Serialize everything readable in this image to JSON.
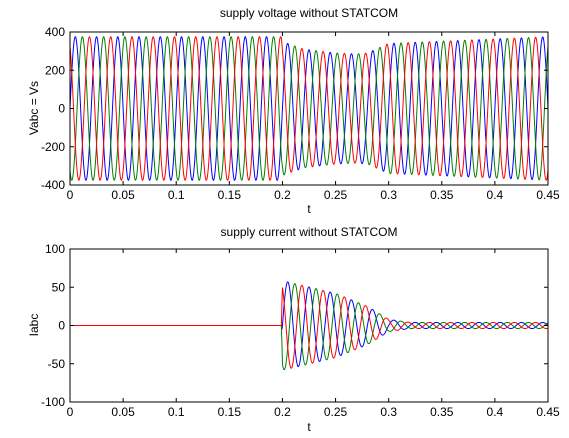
{
  "chart_data": [
    {
      "id": "voltage",
      "type": "line",
      "title": "supply voltage without STATCOM",
      "xlabel": "t",
      "ylabel": "Vabc = Vs",
      "xlim": [
        0,
        0.45
      ],
      "ylim": [
        -400,
        400
      ],
      "xticks": [
        0,
        0.05,
        0.1,
        0.15,
        0.2,
        0.25,
        0.3,
        0.35,
        0.4,
        0.45
      ],
      "xtick_labels": [
        "0",
        "0.05",
        "0.1",
        "0.15",
        "0.2",
        "0.25",
        "0.3",
        "0.35",
        "0.4",
        "0.45"
      ],
      "yticks": [
        -400,
        -200,
        0,
        200,
        400
      ],
      "ytick_labels": [
        "-400",
        "-200",
        "0",
        "200",
        "400"
      ],
      "grid": false,
      "frequency_hz": 50,
      "series": [
        {
          "phase_deg": 0,
          "color": "#0000ff"
        },
        {
          "phase_deg": -120,
          "color": "#008000"
        },
        {
          "phase_deg": 120,
          "color": "#ff0000"
        }
      ],
      "amplitude_envelope": {
        "t": [
          0,
          0.199,
          0.2,
          0.22,
          0.25,
          0.27,
          0.28,
          0.3,
          0.45
        ],
        "amplitude": [
          375,
          375,
          350,
          310,
          290,
          285,
          290,
          340,
          375
        ]
      }
    },
    {
      "id": "current",
      "type": "line",
      "title": "supply current without STATCOM",
      "xlabel": "t",
      "ylabel": "Iabc",
      "xlim": [
        0,
        0.45
      ],
      "ylim": [
        -100,
        100
      ],
      "xticks": [
        0,
        0.05,
        0.1,
        0.15,
        0.2,
        0.25,
        0.3,
        0.35,
        0.4,
        0.45
      ],
      "xtick_labels": [
        "0",
        "0.05",
        "0.1",
        "0.15",
        "0.2",
        "0.25",
        "0.3",
        "0.35",
        "0.4",
        "0.45"
      ],
      "yticks": [
        -100,
        -50,
        0,
        50,
        100
      ],
      "ytick_labels": [
        "-100",
        "-50",
        "0",
        "50",
        "100"
      ],
      "grid": false,
      "frequency_hz": 50,
      "series": [
        {
          "phase_deg": 0,
          "color": "#0000ff"
        },
        {
          "phase_deg": -120,
          "color": "#008000"
        },
        {
          "phase_deg": 120,
          "color": "#ff0000"
        }
      ],
      "amplitude_envelope": {
        "t": [
          0,
          0.199,
          0.2,
          0.205,
          0.22,
          0.25,
          0.28,
          0.3,
          0.32,
          0.45
        ],
        "amplitude": [
          0,
          0,
          58,
          57,
          52,
          42,
          25,
          8,
          4,
          4
        ]
      }
    }
  ]
}
